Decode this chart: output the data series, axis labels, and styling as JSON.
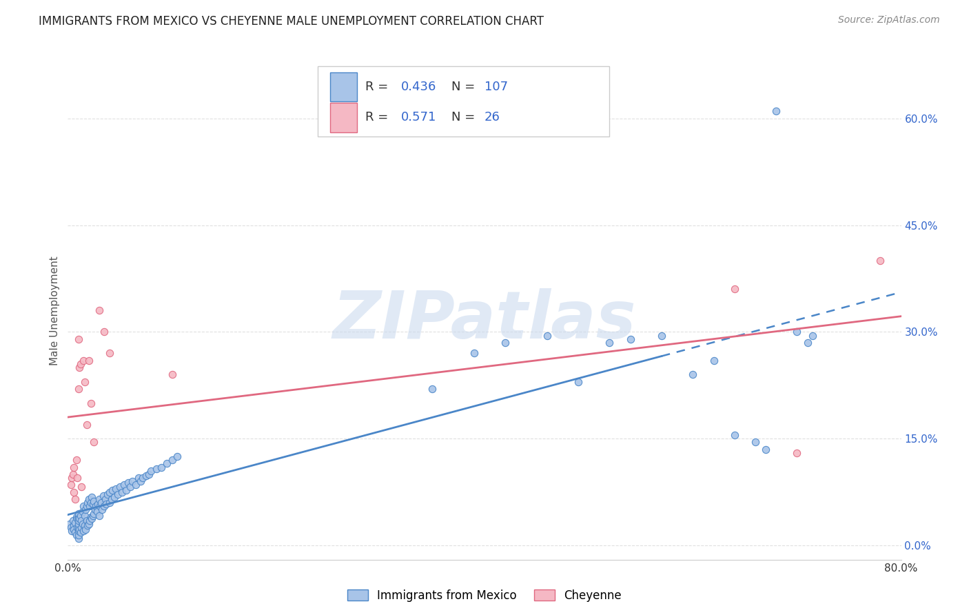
{
  "title": "IMMIGRANTS FROM MEXICO VS CHEYENNE MALE UNEMPLOYMENT CORRELATION CHART",
  "source": "Source: ZipAtlas.com",
  "ylabel": "Male Unemployment",
  "xlim": [
    0.0,
    0.8
  ],
  "ylim": [
    -0.02,
    0.68
  ],
  "xtick_positions": [
    0.0,
    0.1,
    0.2,
    0.3,
    0.4,
    0.5,
    0.6,
    0.7,
    0.8
  ],
  "xtick_labels": [
    "0.0%",
    "",
    "",
    "",
    "",
    "",
    "",
    "",
    "80.0%"
  ],
  "ytick_positions": [
    0.0,
    0.15,
    0.3,
    0.45,
    0.6
  ],
  "ytick_labels": [
    "0.0%",
    "15.0%",
    "30.0%",
    "45.0%",
    "60.0%"
  ],
  "blue_R": 0.436,
  "blue_N": 107,
  "pink_R": 0.571,
  "pink_N": 26,
  "blue_fill": "#a8c4e8",
  "blue_edge": "#4a86c8",
  "pink_fill": "#f5b8c4",
  "pink_edge": "#e06880",
  "blue_line": "#4a86c8",
  "pink_line": "#e06880",
  "legend_label_blue": "Immigrants from Mexico",
  "legend_label_pink": "Cheyenne",
  "bg_color": "#ffffff",
  "grid_color": "#e0e0e0",
  "watermark": "ZIPatlas",
  "blue_scatter_x": [
    0.002,
    0.003,
    0.004,
    0.005,
    0.006,
    0.006,
    0.007,
    0.007,
    0.008,
    0.008,
    0.009,
    0.009,
    0.01,
    0.01,
    0.01,
    0.01,
    0.01,
    0.01,
    0.01,
    0.01,
    0.011,
    0.011,
    0.012,
    0.012,
    0.013,
    0.013,
    0.014,
    0.014,
    0.015,
    0.015,
    0.016,
    0.016,
    0.017,
    0.017,
    0.018,
    0.018,
    0.019,
    0.019,
    0.02,
    0.02,
    0.021,
    0.021,
    0.022,
    0.022,
    0.023,
    0.023,
    0.024,
    0.024,
    0.025,
    0.025,
    0.026,
    0.027,
    0.028,
    0.029,
    0.03,
    0.03,
    0.031,
    0.032,
    0.033,
    0.034,
    0.035,
    0.036,
    0.037,
    0.038,
    0.04,
    0.04,
    0.042,
    0.043,
    0.045,
    0.046,
    0.048,
    0.05,
    0.052,
    0.054,
    0.056,
    0.058,
    0.06,
    0.062,
    0.065,
    0.068,
    0.07,
    0.072,
    0.075,
    0.078,
    0.08,
    0.085,
    0.09,
    0.095,
    0.1,
    0.105,
    0.35,
    0.39,
    0.42,
    0.46,
    0.49,
    0.52,
    0.54,
    0.57,
    0.6,
    0.62,
    0.64,
    0.66,
    0.67,
    0.68,
    0.7,
    0.71,
    0.715
  ],
  "blue_scatter_y": [
    0.03,
    0.025,
    0.02,
    0.035,
    0.028,
    0.022,
    0.032,
    0.018,
    0.04,
    0.015,
    0.025,
    0.038,
    0.01,
    0.015,
    0.02,
    0.025,
    0.03,
    0.035,
    0.04,
    0.045,
    0.022,
    0.038,
    0.018,
    0.042,
    0.025,
    0.035,
    0.03,
    0.048,
    0.02,
    0.055,
    0.028,
    0.042,
    0.022,
    0.05,
    0.035,
    0.055,
    0.028,
    0.06,
    0.03,
    0.065,
    0.035,
    0.055,
    0.04,
    0.06,
    0.038,
    0.068,
    0.042,
    0.058,
    0.045,
    0.062,
    0.05,
    0.055,
    0.048,
    0.058,
    0.042,
    0.065,
    0.055,
    0.06,
    0.05,
    0.07,
    0.055,
    0.065,
    0.058,
    0.072,
    0.06,
    0.075,
    0.065,
    0.078,
    0.068,
    0.08,
    0.072,
    0.082,
    0.075,
    0.085,
    0.078,
    0.088,
    0.082,
    0.09,
    0.085,
    0.095,
    0.09,
    0.095,
    0.098,
    0.1,
    0.105,
    0.108,
    0.11,
    0.115,
    0.12,
    0.125,
    0.22,
    0.27,
    0.285,
    0.295,
    0.23,
    0.285,
    0.29,
    0.295,
    0.24,
    0.26,
    0.155,
    0.145,
    0.135,
    0.61,
    0.3,
    0.285,
    0.295
  ],
  "pink_scatter_x": [
    0.003,
    0.004,
    0.005,
    0.006,
    0.006,
    0.007,
    0.008,
    0.009,
    0.01,
    0.01,
    0.011,
    0.012,
    0.013,
    0.015,
    0.016,
    0.018,
    0.02,
    0.022,
    0.025,
    0.03,
    0.035,
    0.04,
    0.1,
    0.64,
    0.7,
    0.78
  ],
  "pink_scatter_y": [
    0.085,
    0.095,
    0.1,
    0.075,
    0.11,
    0.065,
    0.12,
    0.095,
    0.22,
    0.29,
    0.25,
    0.255,
    0.082,
    0.26,
    0.23,
    0.17,
    0.26,
    0.2,
    0.145,
    0.33,
    0.3,
    0.27,
    0.24,
    0.36,
    0.13,
    0.4
  ],
  "title_fontsize": 12,
  "source_fontsize": 10,
  "tick_fontsize": 11,
  "ylabel_fontsize": 11,
  "watermark_fontsize": 70,
  "legend_fontsize": 13
}
